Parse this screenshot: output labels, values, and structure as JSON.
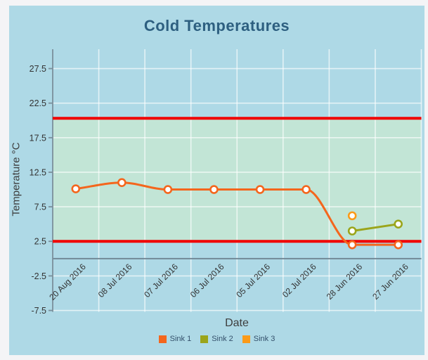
{
  "chart_data": {
    "type": "line",
    "title": "Cold Temperatures",
    "xlabel": "Date",
    "ylabel": "Temperature °C",
    "categories": [
      "20 Aug 2016",
      "08 Jul 2016",
      "07 Jul 2016",
      "06 Jul 2016",
      "05 Jul 2016",
      "02 Jul 2016",
      "28 Jun 2016",
      "27 Jun 2016"
    ],
    "series": [
      {
        "name": "Sink 1",
        "color": "#f4661d",
        "smooth": true,
        "values": [
          10.1,
          11,
          10,
          10,
          10,
          10,
          2,
          2
        ]
      },
      {
        "name": "Sink 2",
        "color": "#9ba51b",
        "smooth": false,
        "values": [
          null,
          null,
          null,
          null,
          null,
          null,
          4,
          5
        ]
      },
      {
        "name": "Sink 3",
        "color": "#fb9a18",
        "smooth": false,
        "values": [
          null,
          null,
          null,
          null,
          null,
          null,
          6.2,
          null
        ]
      }
    ],
    "thresholds": {
      "lower": 2.5,
      "upper": 20.3,
      "line_color": "#f00000",
      "band_color": "#c2e5d6"
    },
    "yticks": [
      27.5,
      22.5,
      17.5,
      12.5,
      7.5,
      2.5,
      -2.5,
      -7.5
    ],
    "ylim": [
      -7.7,
      30.3
    ],
    "grid": true,
    "legend_position": "bottom",
    "marker": "circle-white-fill"
  },
  "colors": {
    "page_bg": "#f4f4f6",
    "panel_bg": "#aed9e6",
    "title_text": "#2d5f80",
    "axis_line": "#7a8f9b",
    "zero_line": "#6e8492",
    "gridline": "rgba(255,255,255,0.65)",
    "tick_label": "#333333",
    "axis_title": "#3d3d3d",
    "legend_label": "#34506b"
  }
}
